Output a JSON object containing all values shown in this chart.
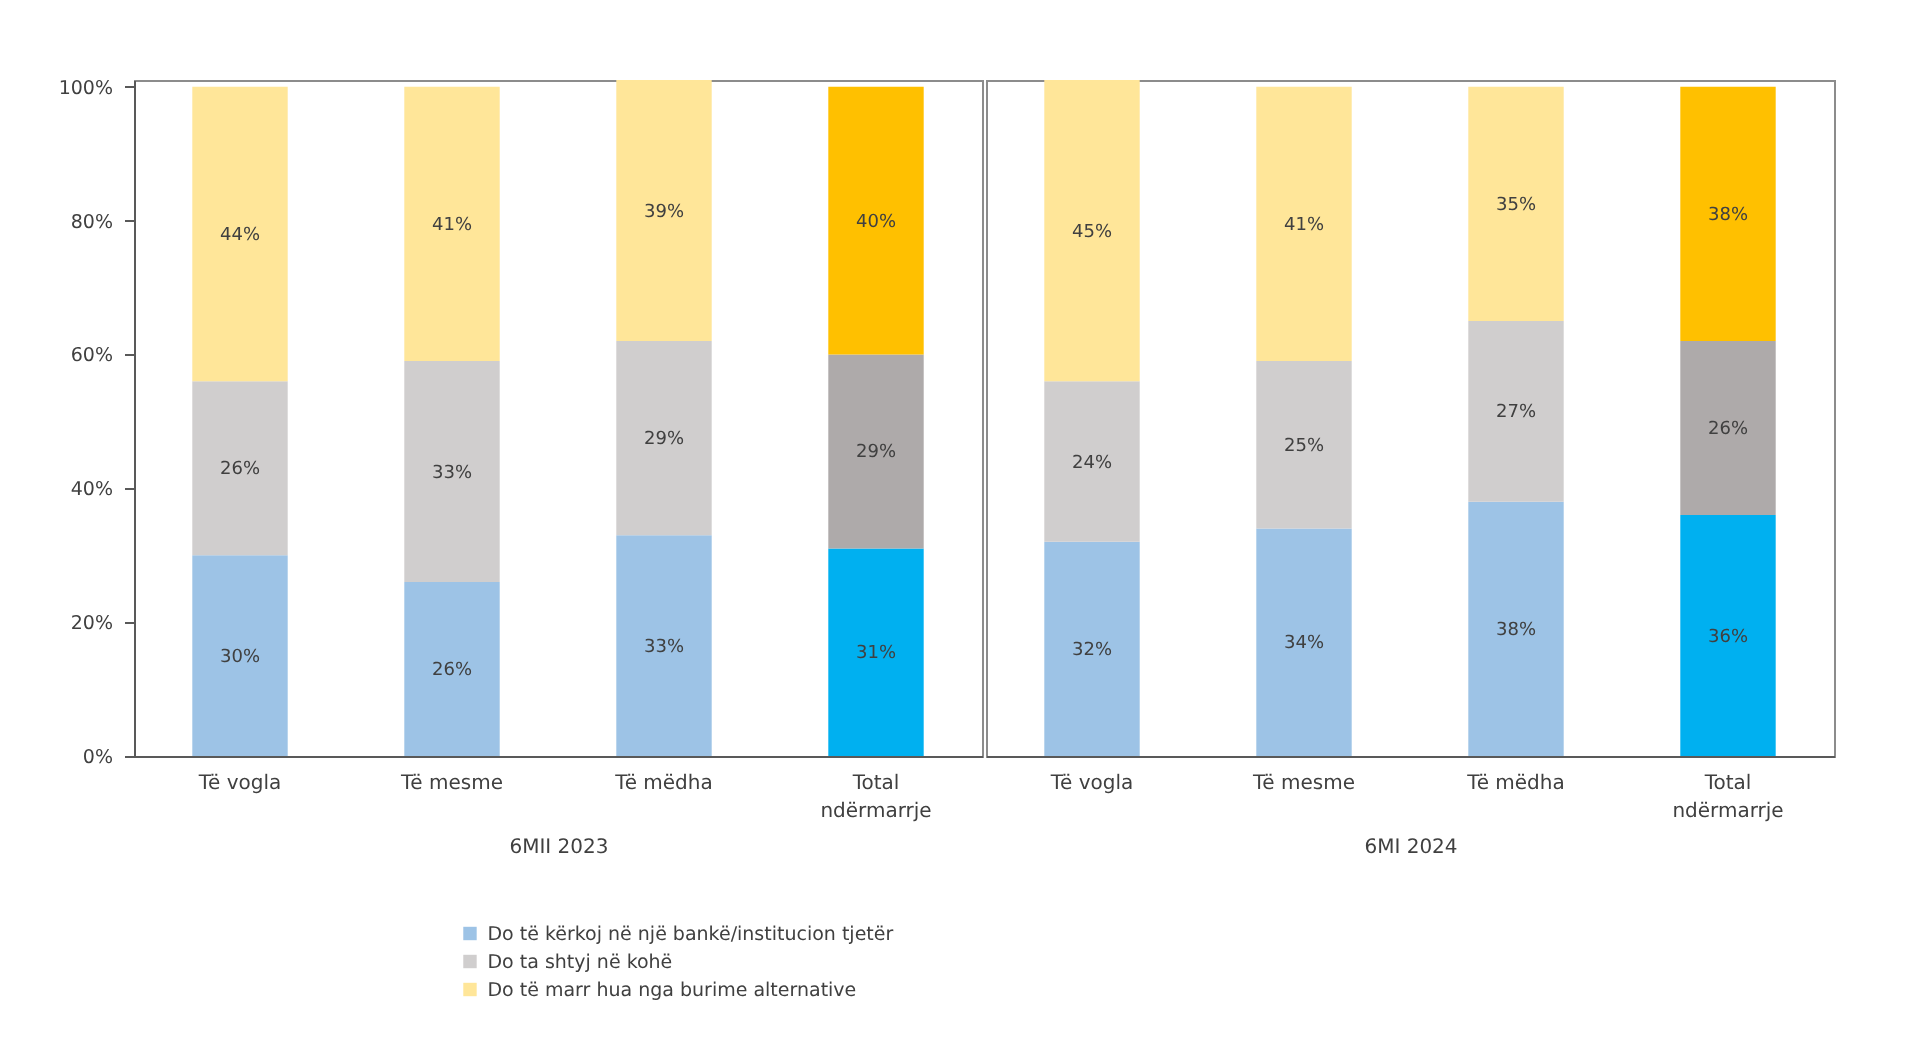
{
  "chart_data": [
    {
      "type": "bar",
      "stacked": true,
      "categories": [
        "Të vogla",
        "Të mesme",
        "Të mëdha",
        "Total ndërmarrje"
      ],
      "xlabel": "6MII 2023",
      "ylim": [
        0,
        101
      ],
      "yticks": [
        {
          "value": 0,
          "label": "0%"
        },
        {
          "value": 20,
          "label": "20%"
        },
        {
          "value": 40,
          "label": "40%"
        },
        {
          "value": 60,
          "label": "60%"
        },
        {
          "value": 80,
          "label": "80%"
        },
        {
          "value": 100,
          "label": "100%"
        }
      ],
      "legend": "bottom",
      "series": [
        {
          "name": "Do të kërkoj në një bankë/institucion tjetër",
          "colors": [
            "#9dc3e6",
            "#9dc3e6",
            "#9dc3e6",
            "#00b0f0"
          ],
          "values": [
            30,
            26,
            33,
            31
          ],
          "value_labels": [
            "30%",
            "26%",
            "33%",
            "31%"
          ]
        },
        {
          "name": "Do ta shtyj në kohë",
          "colors": [
            "#d0cece",
            "#d0cece",
            "#d0cece",
            "#aeaaaa"
          ],
          "values": [
            26,
            33,
            29,
            29
          ],
          "value_labels": [
            "26%",
            "33%",
            "29%",
            "29%"
          ]
        },
        {
          "name": "Do të marr hua nga burime alternative",
          "colors": [
            "#ffe699",
            "#ffe699",
            "#ffe699",
            "#ffc000"
          ],
          "values": [
            44,
            41,
            39,
            40
          ],
          "value_labels": [
            "44%",
            "41%",
            "39%",
            "40%"
          ]
        }
      ]
    },
    {
      "type": "bar",
      "stacked": true,
      "categories": [
        "Të vogla",
        "Të mesme",
        "Të mëdha",
        "Total ndërmarrje"
      ],
      "xlabel": "6MI 2024",
      "ylim": [
        0,
        101
      ],
      "tick_labels": "x",
      "series": [
        {
          "colors": [
            "#9dc3e6",
            "#9dc3e6",
            "#9dc3e6",
            "#00b0f0"
          ],
          "values": [
            32,
            34,
            38,
            36
          ],
          "value_labels": [
            "32%",
            "34%",
            "38%",
            "36%"
          ]
        },
        {
          "colors": [
            "#d0cece",
            "#d0cece",
            "#d0cece",
            "#aeaaaa"
          ],
          "values": [
            24,
            25,
            27,
            26
          ],
          "value_labels": [
            "24%",
            "25%",
            "27%",
            "26%"
          ]
        },
        {
          "colors": [
            "#ffe699",
            "#ffe699",
            "#ffe699",
            "#ffc000"
          ],
          "values": [
            45,
            41,
            35,
            38
          ],
          "value_labels": [
            "45%",
            "41%",
            "35%",
            "38%"
          ]
        }
      ]
    }
  ]
}
